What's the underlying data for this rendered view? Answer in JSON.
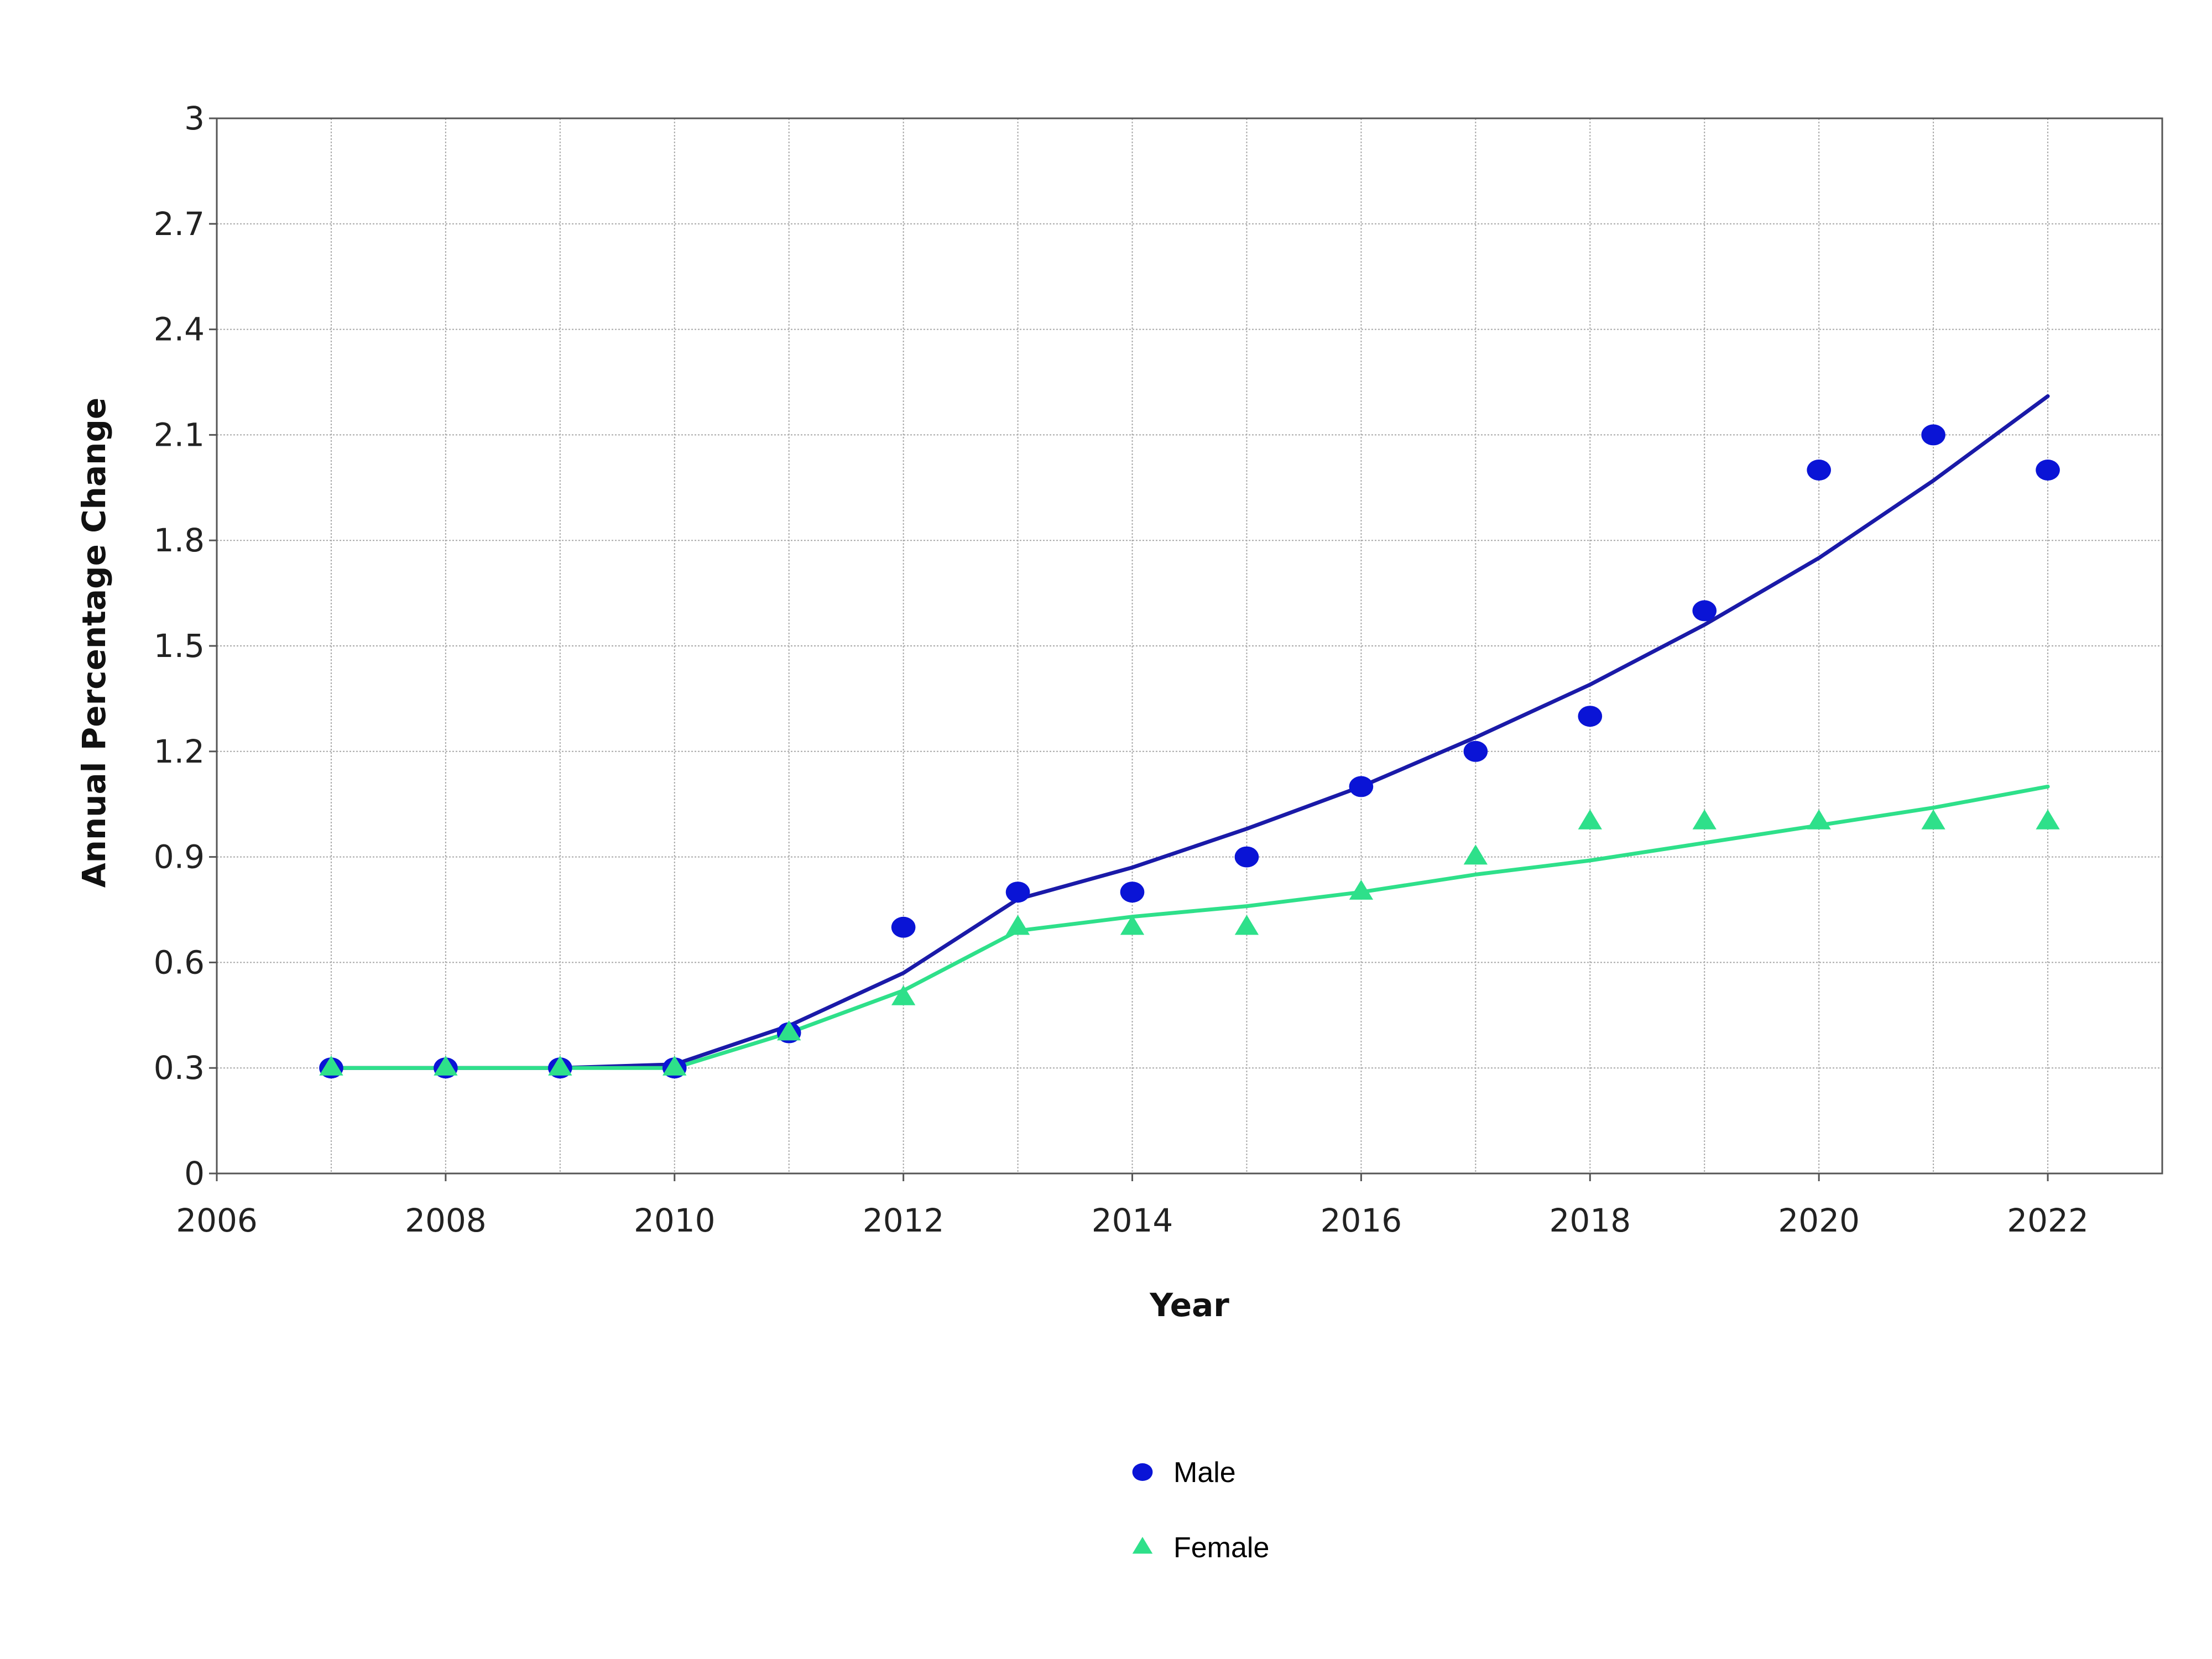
{
  "chart_data": {
    "type": "scatter",
    "xlabel": "Year",
    "ylabel": "Annual Percentage Change",
    "xlim": [
      2006,
      2023
    ],
    "ylim": [
      0,
      3
    ],
    "x_ticks": [
      "2006",
      "2008",
      "2010",
      "2012",
      "2014",
      "2016",
      "2018",
      "2020",
      "2022"
    ],
    "y_ticks": [
      "0",
      "0.3",
      "0.6",
      "0.9",
      "1.2",
      "1.5",
      "1.8",
      "2.1",
      "2.4",
      "2.7",
      "3"
    ],
    "grid": true,
    "legend_position": "bottom-center",
    "series": [
      {
        "name": "Male",
        "color": "#0a14d6",
        "line_color": "#1a1aa8",
        "marker": "circle",
        "x": [
          2007,
          2008,
          2009,
          2010,
          2011,
          2012,
          2013,
          2014,
          2015,
          2016,
          2017,
          2018,
          2019,
          2020,
          2021,
          2022
        ],
        "values": [
          0.3,
          0.3,
          0.3,
          0.3,
          0.4,
          0.7,
          0.8,
          0.8,
          0.9,
          1.1,
          1.2,
          1.3,
          1.6,
          2.0,
          2.1,
          2.0
        ],
        "fitted": [
          0.3,
          0.3,
          0.3,
          0.31,
          0.42,
          0.57,
          0.78,
          0.87,
          0.98,
          1.1,
          1.24,
          1.39,
          1.56,
          1.75,
          1.97,
          2.21
        ]
      },
      {
        "name": "Female",
        "color": "#2ee08a",
        "line_color": "#2ee08a",
        "marker": "triangle",
        "x": [
          2007,
          2008,
          2009,
          2010,
          2011,
          2012,
          2013,
          2014,
          2015,
          2016,
          2017,
          2018,
          2019,
          2020,
          2021,
          2022
        ],
        "values": [
          0.3,
          0.3,
          0.3,
          0.3,
          0.4,
          0.5,
          0.7,
          0.7,
          0.7,
          0.8,
          0.9,
          1.0,
          1.0,
          1.0,
          1.0,
          1.0
        ],
        "fitted": [
          0.3,
          0.3,
          0.3,
          0.3,
          0.4,
          0.52,
          0.69,
          0.73,
          0.76,
          0.8,
          0.85,
          0.89,
          0.94,
          0.99,
          1.04,
          1.1
        ]
      }
    ]
  }
}
